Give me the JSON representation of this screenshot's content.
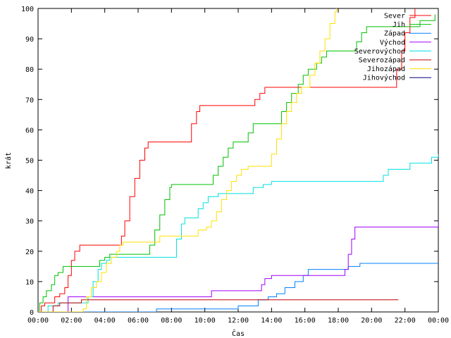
{
  "chart_data": {
    "type": "line",
    "step": true,
    "xlabel": "Čas",
    "ylabel": "krát",
    "xlim": [
      "00:00",
      "24:00"
    ],
    "ylim": [
      0,
      100
    ],
    "x_tick_labels": [
      "00:00",
      "02:00",
      "04:00",
      "06:00",
      "08:00",
      "10:00",
      "12:00",
      "14:00",
      "16:00",
      "18:00",
      "20:00",
      "22:00",
      "00:00"
    ],
    "y_ticks": [
      0,
      10,
      20,
      30,
      40,
      50,
      60,
      70,
      80,
      90,
      100
    ],
    "grid": false,
    "legend": "top-right",
    "series": [
      {
        "name": "Sever",
        "color": "#ff0000",
        "points": [
          [
            0.0,
            0
          ],
          [
            0.2,
            2
          ],
          [
            0.4,
            3
          ],
          [
            0.9,
            3
          ],
          [
            1.0,
            5
          ],
          [
            1.3,
            6
          ],
          [
            1.6,
            8
          ],
          [
            1.8,
            12
          ],
          [
            2.0,
            17
          ],
          [
            2.2,
            20
          ],
          [
            2.5,
            22
          ],
          [
            4.8,
            22
          ],
          [
            5.0,
            25
          ],
          [
            5.2,
            30
          ],
          [
            5.5,
            38
          ],
          [
            5.8,
            44
          ],
          [
            6.1,
            50
          ],
          [
            6.4,
            54
          ],
          [
            6.6,
            56
          ],
          [
            9.0,
            56
          ],
          [
            9.2,
            62
          ],
          [
            9.5,
            66
          ],
          [
            9.7,
            68
          ],
          [
            12.8,
            68
          ],
          [
            13.0,
            70
          ],
          [
            13.3,
            72
          ],
          [
            13.6,
            74
          ],
          [
            21.3,
            74
          ],
          [
            21.5,
            80
          ],
          [
            21.8,
            86
          ],
          [
            22.0,
            92
          ],
          [
            22.3,
            97
          ],
          [
            22.6,
            100
          ]
        ]
      },
      {
        "name": "Jih",
        "color": "#00c000",
        "points": [
          [
            0.0,
            0
          ],
          [
            0.1,
            3
          ],
          [
            0.3,
            5
          ],
          [
            0.5,
            7
          ],
          [
            0.8,
            9
          ],
          [
            1.0,
            12
          ],
          [
            1.2,
            13
          ],
          [
            1.5,
            15
          ],
          [
            3.5,
            15
          ],
          [
            3.7,
            17
          ],
          [
            4.0,
            18
          ],
          [
            4.3,
            19
          ],
          [
            6.5,
            19
          ],
          [
            6.7,
            22
          ],
          [
            7.0,
            27
          ],
          [
            7.3,
            32
          ],
          [
            7.6,
            37
          ],
          [
            7.9,
            41
          ],
          [
            8.0,
            42
          ],
          [
            10.3,
            42
          ],
          [
            10.5,
            45
          ],
          [
            10.8,
            48
          ],
          [
            11.1,
            51
          ],
          [
            11.4,
            54
          ],
          [
            11.7,
            56
          ],
          [
            12.3,
            56
          ],
          [
            12.6,
            59
          ],
          [
            12.9,
            62
          ],
          [
            14.3,
            62
          ],
          [
            14.6,
            66
          ],
          [
            14.9,
            69
          ],
          [
            15.2,
            72
          ],
          [
            15.6,
            75
          ],
          [
            15.9,
            78
          ],
          [
            16.2,
            80
          ],
          [
            16.7,
            82
          ],
          [
            17.0,
            84
          ],
          [
            17.3,
            86
          ],
          [
            18.8,
            86
          ],
          [
            19.1,
            89
          ],
          [
            19.4,
            92
          ],
          [
            19.7,
            94
          ],
          [
            22.7,
            94
          ],
          [
            22.9,
            96
          ],
          [
            23.6,
            96
          ],
          [
            23.8,
            98
          ]
        ]
      },
      {
        "name": "Západ",
        "color": "#0080ff",
        "points": [
          [
            0.0,
            0
          ],
          [
            7.0,
            0
          ],
          [
            7.1,
            1
          ],
          [
            11.8,
            1
          ],
          [
            12.0,
            2
          ],
          [
            13.0,
            2
          ],
          [
            13.2,
            4
          ],
          [
            13.8,
            5
          ],
          [
            14.3,
            6
          ],
          [
            14.8,
            8
          ],
          [
            15.4,
            10
          ],
          [
            15.9,
            12
          ],
          [
            16.2,
            14
          ],
          [
            18.3,
            14
          ],
          [
            18.6,
            15
          ],
          [
            19.3,
            16
          ],
          [
            24.0,
            16
          ]
        ]
      },
      {
        "name": "Východ",
        "color": "#a000ff",
        "points": [
          [
            0.0,
            0
          ],
          [
            1.6,
            0
          ],
          [
            1.8,
            5
          ],
          [
            10.3,
            5
          ],
          [
            10.4,
            7
          ],
          [
            13.2,
            7
          ],
          [
            13.4,
            9
          ],
          [
            13.6,
            11
          ],
          [
            14.0,
            12
          ],
          [
            18.2,
            12
          ],
          [
            18.4,
            14
          ],
          [
            18.6,
            19
          ],
          [
            18.8,
            24
          ],
          [
            19.0,
            28
          ],
          [
            23.9,
            28
          ],
          [
            24.0,
            30
          ]
        ]
      },
      {
        "name": "Severovýchod",
        "color": "#00e0e0",
        "points": [
          [
            0.0,
            0
          ],
          [
            0.6,
            2
          ],
          [
            1.2,
            3
          ],
          [
            2.8,
            3
          ],
          [
            3.0,
            5
          ],
          [
            3.3,
            10
          ],
          [
            3.6,
            14
          ],
          [
            3.8,
            16
          ],
          [
            4.1,
            17
          ],
          [
            4.3,
            18
          ],
          [
            8.0,
            18
          ],
          [
            8.3,
            24
          ],
          [
            8.6,
            29
          ],
          [
            8.8,
            31
          ],
          [
            9.4,
            31
          ],
          [
            9.6,
            34
          ],
          [
            9.9,
            36
          ],
          [
            10.2,
            38
          ],
          [
            10.8,
            39
          ],
          [
            12.7,
            39
          ],
          [
            12.9,
            41
          ],
          [
            13.5,
            42
          ],
          [
            14.0,
            43
          ],
          [
            20.5,
            43
          ],
          [
            20.7,
            45
          ],
          [
            21.0,
            47
          ],
          [
            22.1,
            47
          ],
          [
            22.3,
            49
          ],
          [
            23.5,
            49
          ],
          [
            23.6,
            51
          ],
          [
            24.0,
            52
          ]
        ]
      },
      {
        "name": "Severozápad",
        "color": "#c00000",
        "points": [
          [
            0.0,
            0
          ],
          [
            0.7,
            0
          ],
          [
            0.9,
            2
          ],
          [
            1.3,
            3
          ],
          [
            2.3,
            3
          ],
          [
            2.6,
            4
          ],
          [
            21.6,
            4
          ]
        ]
      },
      {
        "name": "Jihozápad",
        "color": "#ffe000",
        "points": [
          [
            0.0,
            0
          ],
          [
            1.5,
            0
          ],
          [
            2.7,
            1
          ],
          [
            2.9,
            5
          ],
          [
            3.2,
            8
          ],
          [
            3.5,
            10
          ],
          [
            3.8,
            13
          ],
          [
            4.1,
            16
          ],
          [
            4.4,
            18
          ],
          [
            4.7,
            20
          ],
          [
            4.9,
            22
          ],
          [
            5.1,
            23
          ],
          [
            7.0,
            23
          ],
          [
            7.3,
            25
          ],
          [
            9.4,
            25
          ],
          [
            9.6,
            27
          ],
          [
            10.1,
            28
          ],
          [
            10.4,
            30
          ],
          [
            10.7,
            33
          ],
          [
            11.0,
            37
          ],
          [
            11.3,
            40
          ],
          [
            11.6,
            43
          ],
          [
            11.9,
            45
          ],
          [
            12.2,
            47
          ],
          [
            12.6,
            48
          ],
          [
            13.8,
            48
          ],
          [
            14.0,
            52
          ],
          [
            14.3,
            57
          ],
          [
            14.6,
            62
          ],
          [
            14.9,
            66
          ],
          [
            15.2,
            69
          ],
          [
            15.5,
            72
          ],
          [
            15.8,
            74
          ],
          [
            16.3,
            78
          ],
          [
            16.6,
            82
          ],
          [
            16.9,
            86
          ],
          [
            17.2,
            90
          ],
          [
            17.5,
            95
          ],
          [
            17.8,
            99
          ],
          [
            17.9,
            100
          ]
        ]
      },
      {
        "name": "Jihovýchod",
        "color": "#000080",
        "points": []
      }
    ]
  }
}
